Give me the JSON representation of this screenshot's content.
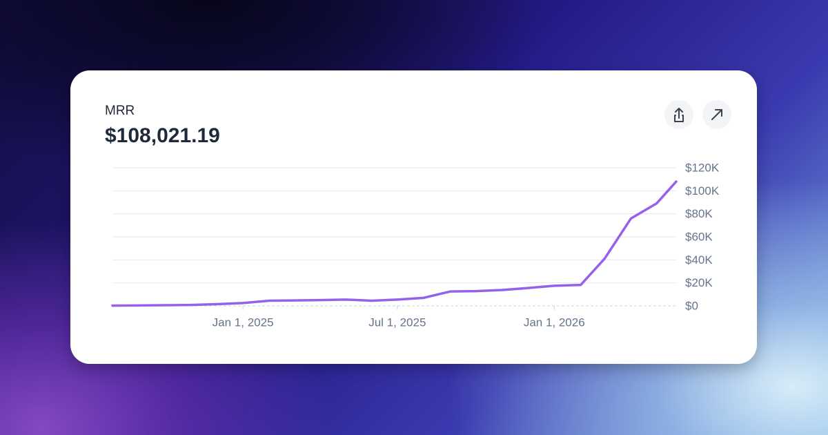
{
  "chart_data": {
    "type": "line",
    "title": "MRR",
    "subtitle": "$108,021.19",
    "x": [
      "2024-08-01",
      "2024-09-01",
      "2024-10-01",
      "2024-11-01",
      "2024-12-01",
      "2025-01-01",
      "2025-02-01",
      "2025-03-01",
      "2025-04-01",
      "2025-05-01",
      "2025-06-01",
      "2025-07-01",
      "2025-08-01",
      "2025-09-01",
      "2025-10-01",
      "2025-11-01",
      "2025-12-01",
      "2026-01-01",
      "2026-02-01",
      "2026-03-01",
      "2026-04-01",
      "2026-05-01",
      "2026-05-24"
    ],
    "series": [
      {
        "name": "MRR",
        "color": "#9461ec",
        "values": [
          200,
          400,
          600,
          800,
          1500,
          2500,
          4500,
          4700,
          5000,
          5500,
          4500,
          5500,
          7000,
          12500,
          12800,
          13800,
          15500,
          17500,
          18200,
          41000,
          76000,
          89000,
          108021.19
        ]
      }
    ],
    "xlim": [
      "2024-08-01",
      "2026-05-24"
    ],
    "xticks": [
      {
        "value": "2025-01-01",
        "label": "Jan 1, 2025"
      },
      {
        "value": "2025-07-01",
        "label": "Jul 1, 2025"
      },
      {
        "value": "2026-01-01",
        "label": "Jan 1, 2026"
      }
    ],
    "ylim": [
      0,
      120000
    ],
    "yticks": [
      {
        "value": 0,
        "label": "$0"
      },
      {
        "value": 20000,
        "label": "$20K"
      },
      {
        "value": 40000,
        "label": "$40K"
      },
      {
        "value": 60000,
        "label": "$60K"
      },
      {
        "value": 80000,
        "label": "$80K"
      },
      {
        "value": 100000,
        "label": "$100K"
      },
      {
        "value": 120000,
        "label": "$120K"
      }
    ],
    "grid": true
  }
}
